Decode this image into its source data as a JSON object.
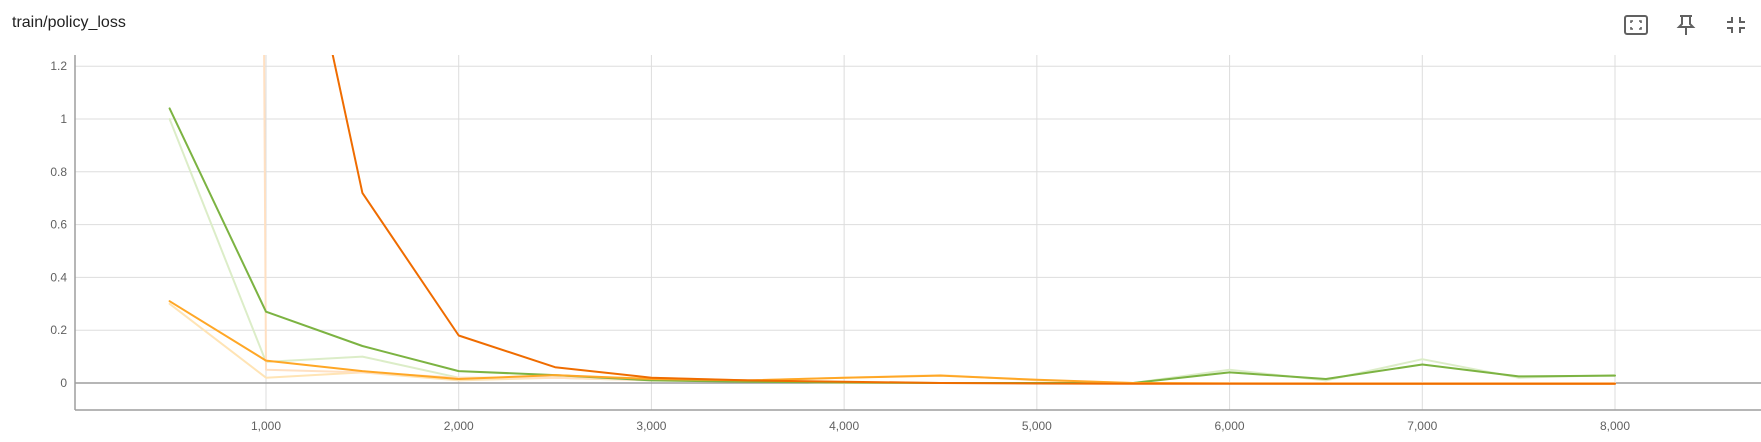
{
  "header": {
    "title": "train/policy_loss"
  },
  "toolbar": {
    "icons": [
      "fit-domain-icon",
      "pin-icon",
      "collapse-icon"
    ]
  },
  "colors": {
    "green": "#7cb342",
    "green_raw": "#dcedc8",
    "orange": "#ef6c00",
    "orange_raw": "#ffe0c2",
    "amber": "#ffa726",
    "amber_raw": "#ffe4b5",
    "grid": "#dddddd",
    "axis": "#9e9e9e"
  },
  "chart_data": {
    "type": "line",
    "title": "train/policy_loss",
    "xlabel": "",
    "ylabel": "",
    "xlim": [
      0,
      8750
    ],
    "ylim": [
      -0.1,
      1.25
    ],
    "x_ticks": [
      1000,
      2000,
      3000,
      4000,
      5000,
      6000,
      7000,
      8000
    ],
    "x_tick_labels": [
      "1,000",
      "2,000",
      "3,000",
      "4,000",
      "5,000",
      "6,000",
      "7,000",
      "8,000"
    ],
    "y_ticks": [
      0,
      0.2,
      0.4,
      0.6,
      0.8,
      1,
      1.2
    ],
    "y_tick_labels": [
      "0",
      "0.2",
      "0.4",
      "0.6",
      "0.8",
      "1",
      "1.2"
    ],
    "grid": true,
    "legend": "none",
    "series": [
      {
        "color": "green_raw",
        "x": [
          500,
          1000,
          1500,
          2000,
          2500,
          3000,
          3500,
          4000,
          4500,
          5000,
          5500,
          6000,
          6500,
          7000,
          7500,
          8000
        ],
        "y": [
          1.0,
          0.08,
          0.1,
          0.02,
          0.02,
          0.01,
          0.01,
          0.0,
          0.0,
          0.0,
          0.0,
          0.05,
          0.01,
          0.09,
          0.02,
          0.03
        ]
      },
      {
        "color": "amber_raw",
        "x": [
          500,
          1000,
          1500,
          2000,
          2500,
          3000,
          3500,
          4000,
          4500,
          5000,
          5500,
          6000,
          6500,
          7000,
          7500,
          8000
        ],
        "y": [
          0.3,
          0.02,
          0.04,
          0.01,
          0.02,
          0.02,
          0.01,
          0.02,
          0.03,
          0.01,
          0.0,
          0.0,
          0.0,
          0.0,
          0.0,
          0.0
        ]
      },
      {
        "color": "orange_raw",
        "x": [
          950,
          990,
          1000,
          1500,
          2000,
          2500,
          3000,
          3500,
          4000,
          4500,
          5000,
          5500,
          6000,
          6500,
          7000,
          7500,
          8000
        ],
        "y": [
          1.5,
          1.25,
          0.05,
          0.04,
          0.02,
          0.02,
          0.01,
          0.01,
          0.0,
          0.0,
          0.0,
          0.0,
          0.0,
          0.0,
          0.0,
          0.0,
          0.0
        ]
      },
      {
        "color": "green",
        "x": [
          500,
          1000,
          1500,
          2000,
          2500,
          3000,
          3500,
          4000,
          4500,
          5000,
          5500,
          6000,
          6500,
          7000,
          7500,
          8000
        ],
        "y": [
          1.04,
          0.27,
          0.14,
          0.045,
          0.03,
          0.01,
          0.005,
          0.002,
          0.0,
          0.0,
          0.0,
          0.04,
          0.015,
          0.07,
          0.025,
          0.028
        ]
      },
      {
        "color": "amber",
        "x": [
          500,
          1000,
          1500,
          2000,
          2500,
          3000,
          3500,
          4000,
          4500,
          5000,
          5500,
          6000,
          6500,
          7000,
          7500,
          8000
        ],
        "y": [
          0.31,
          0.085,
          0.045,
          0.015,
          0.03,
          0.015,
          0.01,
          0.02,
          0.028,
          0.012,
          0.0,
          -0.002,
          -0.003,
          -0.003,
          -0.003,
          -0.003
        ]
      },
      {
        "color": "orange",
        "x": [
          1300,
          1500,
          2000,
          2500,
          3000,
          3500,
          4000,
          4500,
          5000,
          5500,
          6000,
          6500,
          7000,
          7500,
          8000
        ],
        "y": [
          1.4,
          0.72,
          0.18,
          0.06,
          0.02,
          0.01,
          0.005,
          0.0,
          -0.002,
          -0.003,
          -0.003,
          -0.003,
          -0.003,
          -0.003,
          -0.003
        ]
      }
    ]
  }
}
